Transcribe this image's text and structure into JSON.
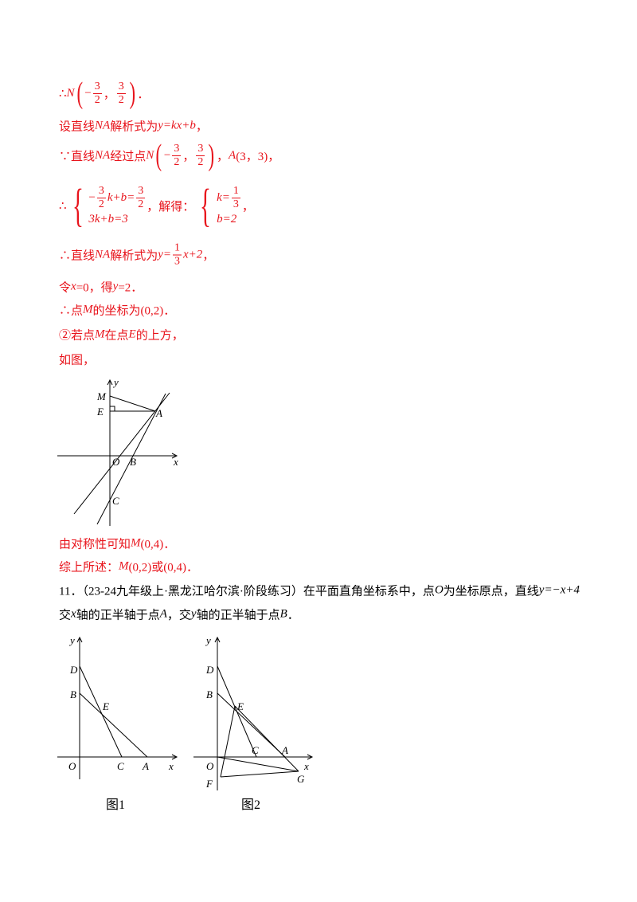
{
  "solution": [
    [
      {
        "t": "∴"
      },
      {
        "m": "N"
      },
      {
        "p": "("
      },
      {
        "t": "−"
      },
      {
        "f": [
          "3",
          "2"
        ]
      },
      {
        "t": "，"
      },
      {
        "f": [
          "3",
          "2"
        ]
      },
      {
        "p": ")"
      },
      {
        "t": "．"
      }
    ],
    [
      {
        "t": "设直线"
      },
      {
        "m": "NA"
      },
      {
        "t": "解析式为"
      },
      {
        "m": "y=kx+b"
      },
      {
        "t": "，"
      }
    ],
    [
      {
        "t": "∵直线"
      },
      {
        "m": "NA"
      },
      {
        "t": "经过点"
      },
      {
        "m": "N"
      },
      {
        "p": "("
      },
      {
        "t": "−"
      },
      {
        "f": [
          "3",
          "2"
        ]
      },
      {
        "t": "，"
      },
      {
        "f": [
          "3",
          "2"
        ]
      },
      {
        "p": ")"
      },
      {
        "t": "，"
      },
      {
        "m": "A"
      },
      {
        "t": "(3，3)，"
      }
    ],
    [
      {
        "t": "∴"
      },
      {
        "s": [
          [
            {
              "t": "−"
            },
            {
              "f": [
                "3",
                "2"
              ]
            },
            {
              "m": "k+b="
            },
            {
              "f": [
                "3",
                "2"
              ]
            }
          ],
          [
            {
              "m": "3k+b=3"
            }
          ]
        ]
      },
      {
        "t": "，解得："
      },
      {
        "s": [
          [
            {
              "m": "k="
            },
            {
              "f": [
                "1",
                "3"
              ]
            }
          ],
          [
            {
              "m": "b=2"
            }
          ]
        ]
      },
      {
        "t": "，"
      }
    ],
    [
      {
        "t": "∴直线"
      },
      {
        "m": "NA"
      },
      {
        "t": "解析式为"
      },
      {
        "m": "y="
      },
      {
        "f": [
          "1",
          "3"
        ]
      },
      {
        "m": "x+2"
      },
      {
        "t": "，"
      }
    ],
    [
      {
        "t": "令"
      },
      {
        "m": "x"
      },
      {
        "t": "=0，得"
      },
      {
        "m": "y"
      },
      {
        "t": "=2．"
      }
    ],
    [
      {
        "t": "∴点"
      },
      {
        "m": "M"
      },
      {
        "t": "的坐标为(0,2)．"
      }
    ],
    [
      {
        "t": "②若点"
      },
      {
        "m": "M"
      },
      {
        "t": "在点"
      },
      {
        "m": "E"
      },
      {
        "t": "的上方，"
      }
    ],
    [
      {
        "t": "如图，"
      }
    ]
  ],
  "figure1": {
    "labels": [
      "y",
      "M",
      "E",
      "A",
      "O",
      "B",
      "x",
      "C"
    ]
  },
  "conclusion": [
    [
      {
        "t": "由对称性可知"
      },
      {
        "m": "M"
      },
      {
        "t": "(0,4)．"
      }
    ],
    [
      {
        "t": "综上所述："
      },
      {
        "m": "M"
      },
      {
        "t": "(0,2)或(0,4)．"
      }
    ]
  ],
  "problem": [
    [
      {
        "t": "11．（23-24九年级上·黑龙江哈尔滨·阶段练习）在平面直角坐标系中，点"
      },
      {
        "m": "O"
      },
      {
        "t": "为坐标原点，直线"
      },
      {
        "m": "y=−x+4"
      }
    ],
    [
      {
        "t": "交"
      },
      {
        "m": "x"
      },
      {
        "t": "轴的正半轴于点"
      },
      {
        "m": "A"
      },
      {
        "t": "，交"
      },
      {
        "m": "y"
      },
      {
        "t": "轴的正半轴于点"
      },
      {
        "m": "B"
      },
      {
        "t": "．"
      }
    ]
  ],
  "figure2": {
    "labels": [
      "y",
      "D",
      "B",
      "E",
      "O",
      "C",
      "A",
      "x"
    ],
    "caption": "图1"
  },
  "figure3": {
    "labels": [
      "y",
      "D",
      "B",
      "E",
      "C",
      "A",
      "O",
      "x",
      "F",
      "G"
    ],
    "caption": "图2"
  }
}
